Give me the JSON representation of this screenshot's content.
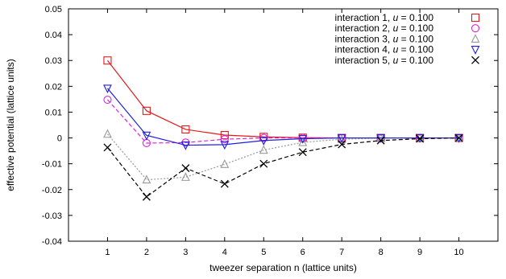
{
  "chart_data": {
    "type": "line",
    "xlabel": "tweezer separation n (lattice units)",
    "ylabel": "effective potential (lattice units)",
    "xlim": [
      0,
      11
    ],
    "ylim": [
      -0.04,
      0.05
    ],
    "x_ticks": [
      1,
      2,
      3,
      4,
      5,
      6,
      7,
      8,
      9,
      10
    ],
    "y_ticks": [
      -0.04,
      -0.03,
      -0.02,
      -0.01,
      0,
      0.01,
      0.02,
      0.03,
      0.04,
      0.05
    ],
    "y_tick_labels": [
      "-0.04",
      "-0.03",
      "-0.02",
      "-0.01",
      "0",
      "0.01",
      "0.02",
      "0.03",
      "0.04",
      "0.05"
    ],
    "grid": false,
    "legend_position": "top-right",
    "x": [
      1,
      2,
      3,
      4,
      5,
      6,
      7,
      8,
      9,
      10
    ],
    "series": [
      {
        "name": "interaction 1",
        "u_label": "u",
        "u_value": "= 0.100",
        "color": "#e41a1c",
        "line_style": "solid",
        "marker": "square",
        "values": [
          0.03,
          0.0105,
          0.0033,
          0.0011,
          0.0004,
          0.0001,
          0.0,
          0.0,
          0.0,
          0.0
        ]
      },
      {
        "name": "interaction 2",
        "u_label": "u",
        "u_value": "= 0.100",
        "color": "#e020e0",
        "line_style": "dashed",
        "marker": "circle",
        "values": [
          0.0148,
          -0.002,
          -0.0018,
          -0.0005,
          0.0,
          0.0,
          0.0,
          0.0,
          0.0,
          0.0
        ]
      },
      {
        "name": "interaction 3",
        "u_label": "u",
        "u_value": "= 0.100",
        "color": "#999999",
        "line_style": "dotted",
        "marker": "triangle-up",
        "values": [
          0.0015,
          -0.0162,
          -0.0152,
          -0.0102,
          -0.0047,
          -0.0017,
          -0.0005,
          -0.0001,
          0.0,
          0.0
        ]
      },
      {
        "name": "interaction 4",
        "u_label": "u",
        "u_value": "= 0.100",
        "color": "#1f1fe0",
        "line_style": "solid",
        "marker": "triangle-down",
        "values": [
          0.0192,
          0.001,
          -0.0028,
          -0.0026,
          -0.001,
          -0.0003,
          0.0,
          0.0,
          0.0,
          0.0
        ]
      },
      {
        "name": "interaction 5",
        "u_label": "u",
        "u_value": "= 0.100",
        "color": "#000000",
        "line_style": "dashed",
        "marker": "x",
        "values": [
          -0.0037,
          -0.0228,
          -0.0117,
          -0.0178,
          -0.01,
          -0.0055,
          -0.0025,
          -0.001,
          -0.0003,
          0.0
        ]
      }
    ]
  }
}
